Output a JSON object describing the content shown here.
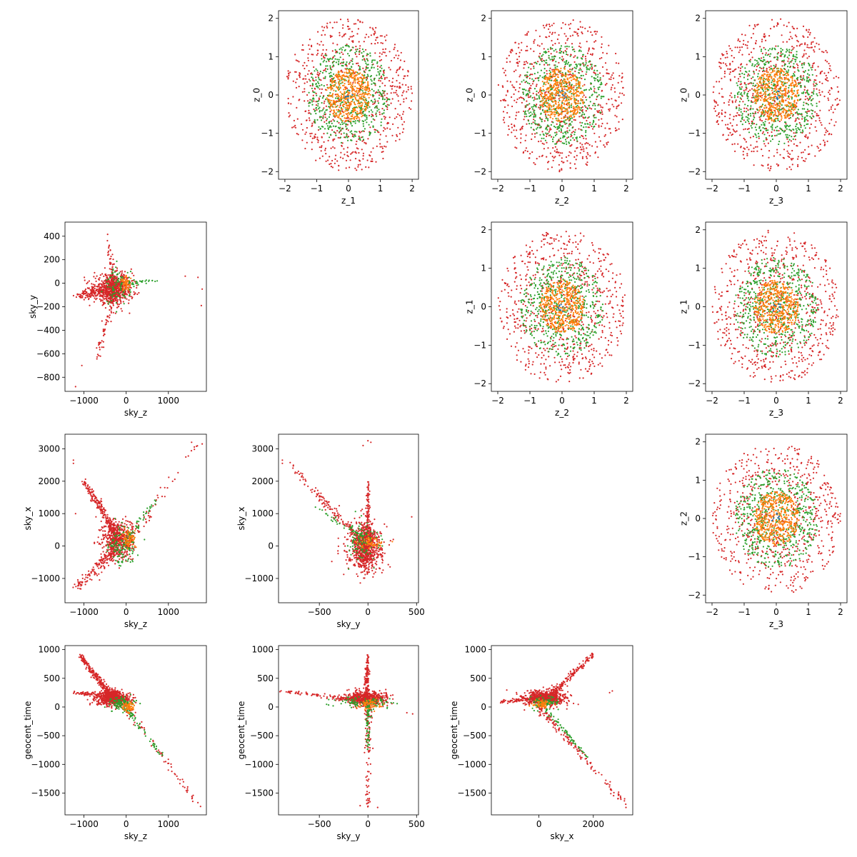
{
  "colors": {
    "series_blue": "#1f77b4",
    "series_orange": "#ff7f0e",
    "series_green": "#2ca02c",
    "series_red": "#d62728",
    "axes": "#000000"
  },
  "chart_data": [
    {
      "type": "scatter",
      "id": "z1_z0",
      "xlabel": "z_1",
      "ylabel": "z_0",
      "xlim": [
        -2.2,
        2.2
      ],
      "ylim": [
        -2.2,
        2.2
      ],
      "xticks": [
        -2,
        -1,
        0,
        1,
        2
      ],
      "yticks": [
        -2,
        -1,
        0,
        1,
        2
      ],
      "grid": false,
      "shape": "disk",
      "series": [
        {
          "color": "#d62728",
          "distribution": "uniform disk",
          "radius": 2.0,
          "count": 700
        },
        {
          "color": "#2ca02c",
          "distribution": "uniform disk",
          "radius": 1.3,
          "count": 550
        },
        {
          "color": "#ff7f0e",
          "distribution": "uniform disk",
          "radius": 0.7,
          "count": 450
        },
        {
          "color": "#1f77b4",
          "distribution": "uniform disk",
          "radius": 0.15,
          "count": 8
        }
      ]
    },
    {
      "type": "scatter",
      "id": "z2_z0",
      "xlabel": "z_2",
      "ylabel": "z_0",
      "xlim": [
        -2.2,
        2.2
      ],
      "ylim": [
        -2.2,
        2.2
      ],
      "xticks": [
        -2,
        -1,
        0,
        1,
        2
      ],
      "yticks": [
        -2,
        -1,
        0,
        1,
        2
      ],
      "grid": false,
      "shape": "disk"
    },
    {
      "type": "scatter",
      "id": "z3_z0",
      "xlabel": "z_3",
      "ylabel": "z_0",
      "xlim": [
        -2.2,
        2.2
      ],
      "ylim": [
        -2.2,
        2.2
      ],
      "xticks": [
        -2,
        -1,
        0,
        1,
        2
      ],
      "yticks": [
        -2,
        -1,
        0,
        1,
        2
      ],
      "grid": false,
      "shape": "disk"
    },
    {
      "type": "scatter",
      "id": "skyz_skyy",
      "xlabel": "sky_z",
      "ylabel": "sky_y",
      "xlim": [
        -1450,
        1900
      ],
      "ylim": [
        -920,
        520
      ],
      "xticks": [
        -1000,
        0,
        1000
      ],
      "yticks": [
        -800,
        -600,
        -400,
        -200,
        0,
        200,
        400
      ],
      "grid": false,
      "shape": "sky"
    },
    {
      "type": "scatter",
      "id": "z2_z1",
      "xlabel": "z_2",
      "ylabel": "z_1",
      "xlim": [
        -2.2,
        2.2
      ],
      "ylim": [
        -2.2,
        2.2
      ],
      "xticks": [
        -2,
        -1,
        0,
        1,
        2
      ],
      "yticks": [
        -2,
        -1,
        0,
        1,
        2
      ],
      "grid": false,
      "shape": "disk"
    },
    {
      "type": "scatter",
      "id": "z3_z1",
      "xlabel": "z_3",
      "ylabel": "z_1",
      "xlim": [
        -2.2,
        2.2
      ],
      "ylim": [
        -2.2,
        2.2
      ],
      "xticks": [
        -2,
        -1,
        0,
        1,
        2
      ],
      "yticks": [
        -2,
        -1,
        0,
        1,
        2
      ],
      "grid": false,
      "shape": "disk"
    },
    {
      "type": "scatter",
      "id": "skyz_skyx",
      "xlabel": "sky_z",
      "ylabel": "sky_x",
      "xlim": [
        -1450,
        1900
      ],
      "ylim": [
        -1750,
        3450
      ],
      "xticks": [
        -1000,
        0,
        1000
      ],
      "yticks": [
        -1000,
        0,
        1000,
        2000,
        3000
      ],
      "grid": false,
      "shape": "sky"
    },
    {
      "type": "scatter",
      "id": "skyy_skyx",
      "xlabel": "sky_y",
      "ylabel": "sky_x",
      "xlim": [
        -920,
        520
      ],
      "ylim": [
        -1750,
        3450
      ],
      "xticks": [
        -500,
        0,
        500
      ],
      "yticks": [
        -1000,
        0,
        1000,
        2000,
        3000
      ],
      "grid": false,
      "shape": "sky"
    },
    {
      "type": "scatter",
      "id": "z3_z2",
      "xlabel": "z_3",
      "ylabel": "z_2",
      "xlim": [
        -2.2,
        2.2
      ],
      "ylim": [
        -2.2,
        2.2
      ],
      "xticks": [
        -2,
        -1,
        0,
        1,
        2
      ],
      "yticks": [
        -2,
        -1,
        0,
        1,
        2
      ],
      "grid": false,
      "shape": "disk"
    },
    {
      "type": "scatter",
      "id": "skyz_time",
      "xlabel": "sky_z",
      "ylabel": "geocent_time",
      "xlim": [
        -1450,
        1900
      ],
      "ylim": [
        -1880,
        1070
      ],
      "xticks": [
        -1000,
        0,
        1000
      ],
      "yticks": [
        -1500,
        -1000,
        -500,
        0,
        500,
        1000
      ],
      "grid": false,
      "shape": "sky"
    },
    {
      "type": "scatter",
      "id": "skyy_time",
      "xlabel": "sky_y",
      "ylabel": "geocent_time",
      "xlim": [
        -920,
        520
      ],
      "ylim": [
        -1880,
        1070
      ],
      "xticks": [
        -500,
        0,
        500
      ],
      "yticks": [
        -1500,
        -1000,
        -500,
        0,
        500,
        1000
      ],
      "grid": false,
      "shape": "sky"
    },
    {
      "type": "scatter",
      "id": "skyx_time",
      "xlabel": "sky_x",
      "ylabel": "geocent_time",
      "xlim": [
        -1750,
        3450
      ],
      "ylim": [
        -1880,
        1070
      ],
      "xticks": [
        0,
        2000
      ],
      "yticks": [
        -1500,
        -1000,
        -500,
        0,
        500,
        1000
      ],
      "grid": false,
      "shape": "sky"
    }
  ]
}
